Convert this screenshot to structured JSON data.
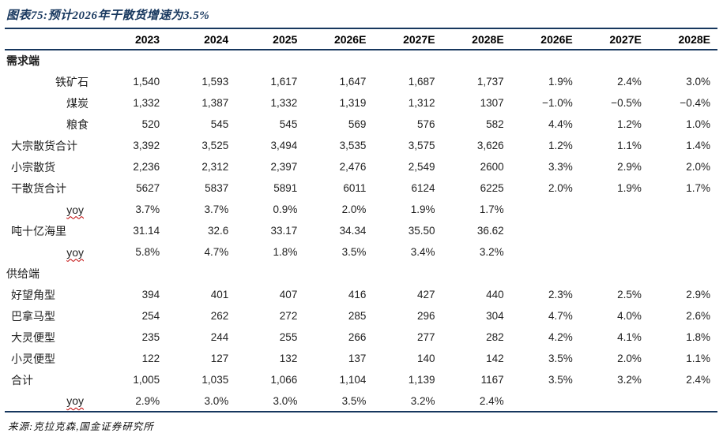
{
  "colors": {
    "accent": "#17375E",
    "text": "#1f1f1f",
    "spellcheck_underline": "#C00000"
  },
  "chart_data": {
    "type": "table",
    "title": "图表75:预计2026年干散货增速为3.5%",
    "source": "来源:克拉克森,国金证券研究所",
    "columns": [
      "2023",
      "2024",
      "2025",
      "2026E",
      "2027E",
      "2028E",
      "2026E",
      "2027E",
      "2028E"
    ],
    "rows": [
      {
        "label": "需求端",
        "style": "section-bold",
        "values": [
          "",
          "",
          "",
          "",
          "",
          "",
          "",
          "",
          ""
        ]
      },
      {
        "label": "铁矿石",
        "style": "sub",
        "values": [
          "1,540",
          "1,593",
          "1,617",
          "1,647",
          "1,687",
          "1,737",
          "1.9%",
          "2.4%",
          "3.0%"
        ]
      },
      {
        "label": "煤炭",
        "style": "sub",
        "values": [
          "1,332",
          "1,387",
          "1,332",
          "1,319",
          "1,312",
          "1307",
          "−1.0%",
          "−0.5%",
          "−0.4%"
        ]
      },
      {
        "label": "粮食",
        "style": "sub",
        "values": [
          "520",
          "545",
          "545",
          "569",
          "576",
          "582",
          "4.4%",
          "1.2%",
          "1.0%"
        ]
      },
      {
        "label": "大宗散货合计",
        "style": "left",
        "values": [
          "3,392",
          "3,525",
          "3,494",
          "3,535",
          "3,575",
          "3,626",
          "1.2%",
          "1.1%",
          "1.4%"
        ]
      },
      {
        "label": "小宗散货",
        "style": "left",
        "values": [
          "2,236",
          "2,312",
          "2,397",
          "2,476",
          "2,549",
          "2600",
          "3.3%",
          "2.9%",
          "2.0%"
        ]
      },
      {
        "label": "干散货合计",
        "style": "left",
        "values": [
          "5627",
          "5837",
          "5891",
          "6011",
          "6124",
          "6225",
          "2.0%",
          "1.9%",
          "1.7%"
        ]
      },
      {
        "label": "yoy",
        "style": "yoy",
        "values": [
          "3.7%",
          "3.7%",
          "0.9%",
          "2.0%",
          "1.9%",
          "1.7%",
          "",
          "",
          ""
        ]
      },
      {
        "label": "吨十亿海里",
        "style": "left",
        "values": [
          "31.14",
          "32.6",
          "33.17",
          "34.34",
          "35.50",
          "36.62",
          "",
          "",
          ""
        ]
      },
      {
        "label": "yoy",
        "style": "yoy",
        "values": [
          "5.8%",
          "4.7%",
          "1.8%",
          "3.5%",
          "3.4%",
          "3.2%",
          "",
          "",
          ""
        ]
      },
      {
        "label": "供给端",
        "style": "section",
        "values": [
          "",
          "",
          "",
          "",
          "",
          "",
          "",
          "",
          ""
        ]
      },
      {
        "label": "好望角型",
        "style": "left",
        "values": [
          "394",
          "401",
          "407",
          "416",
          "427",
          "440",
          "2.3%",
          "2.5%",
          "2.9%"
        ]
      },
      {
        "label": "巴拿马型",
        "style": "left",
        "values": [
          "254",
          "262",
          "272",
          "285",
          "296",
          "304",
          "4.7%",
          "4.0%",
          "2.6%"
        ]
      },
      {
        "label": "大灵便型",
        "style": "left",
        "values": [
          "235",
          "244",
          "255",
          "266",
          "277",
          "282",
          "4.2%",
          "4.1%",
          "1.8%"
        ]
      },
      {
        "label": "小灵便型",
        "style": "left",
        "values": [
          "122",
          "127",
          "132",
          "137",
          "140",
          "142",
          "3.5%",
          "2.0%",
          "1.1%"
        ]
      },
      {
        "label": "合计",
        "style": "left",
        "values": [
          "1,005",
          "1,035",
          "1,066",
          "1,104",
          "1,139",
          "1167",
          "3.5%",
          "3.2%",
          "2.4%"
        ]
      },
      {
        "label": "yoy",
        "style": "yoy",
        "values": [
          "2.9%",
          "3.0%",
          "3.0%",
          "3.5%",
          "3.2%",
          "2.4%",
          "",
          "",
          ""
        ]
      }
    ]
  }
}
